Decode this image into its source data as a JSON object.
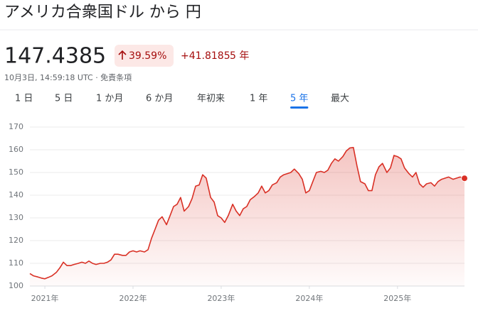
{
  "header": {
    "title": "アメリカ合衆国ドル から 円",
    "price": "147.4385",
    "change_percent": "39.59%",
    "change_absolute": "+41.8185",
    "period": "5 年",
    "timestamp": "10月3日, 14:59:18 UTC · 免責条項"
  },
  "tabs": {
    "items": [
      "1 日",
      "5 日",
      "1 か月",
      "6 か月",
      "年初来",
      "1 年",
      "5 年",
      "最大"
    ],
    "active": 6
  },
  "chart_data": {
    "type": "line",
    "color": "#d93025",
    "grid": true,
    "xlim": [
      2020.83,
      2025.76
    ],
    "xticks": [
      {
        "value": 2021,
        "label": "2021年"
      },
      {
        "value": 2022,
        "label": "2022年"
      },
      {
        "value": 2023,
        "label": "2023年"
      },
      {
        "value": 2024,
        "label": "2024年"
      },
      {
        "value": 2025,
        "label": "2025年"
      }
    ],
    "ylim": [
      100,
      170
    ],
    "yticks": [
      100,
      110,
      120,
      130,
      140,
      150,
      160,
      170
    ],
    "x": [
      2020.83,
      2020.87,
      2020.92,
      2020.96,
      2021.0,
      2021.04,
      2021.08,
      2021.13,
      2021.17,
      2021.21,
      2021.25,
      2021.29,
      2021.33,
      2021.38,
      2021.42,
      2021.46,
      2021.5,
      2021.54,
      2021.58,
      2021.63,
      2021.67,
      2021.71,
      2021.75,
      2021.79,
      2021.83,
      2021.88,
      2021.92,
      2021.96,
      2022.0,
      2022.04,
      2022.08,
      2022.13,
      2022.17,
      2022.21,
      2022.25,
      2022.29,
      2022.33,
      2022.38,
      2022.42,
      2022.46,
      2022.5,
      2022.54,
      2022.58,
      2022.63,
      2022.67,
      2022.71,
      2022.75,
      2022.79,
      2022.83,
      2022.88,
      2022.92,
      2022.96,
      2023.0,
      2023.04,
      2023.08,
      2023.13,
      2023.17,
      2023.21,
      2023.25,
      2023.29,
      2023.33,
      2023.38,
      2023.42,
      2023.46,
      2023.5,
      2023.54,
      2023.58,
      2023.63,
      2023.67,
      2023.71,
      2023.75,
      2023.79,
      2023.83,
      2023.88,
      2023.92,
      2023.96,
      2024.0,
      2024.04,
      2024.08,
      2024.13,
      2024.17,
      2024.21,
      2024.25,
      2024.29,
      2024.33,
      2024.38,
      2024.42,
      2024.46,
      2024.5,
      2024.54,
      2024.58,
      2024.63,
      2024.67,
      2024.71,
      2024.75,
      2024.79,
      2024.83,
      2024.88,
      2024.92,
      2024.96,
      2025.0,
      2025.04,
      2025.08,
      2025.13,
      2025.17,
      2025.21,
      2025.25,
      2025.29,
      2025.33,
      2025.38,
      2025.42,
      2025.46,
      2025.5,
      2025.54,
      2025.58,
      2025.63,
      2025.67,
      2025.71,
      2025.76
    ],
    "values": [
      105.5,
      104.5,
      104,
      103.5,
      103.2,
      103.8,
      104.5,
      106,
      108,
      110.5,
      109,
      109,
      109.5,
      110,
      110.5,
      110,
      111,
      110,
      109.5,
      110,
      110,
      110.5,
      111.5,
      114,
      114,
      113.5,
      113.5,
      115,
      115.5,
      115,
      115.5,
      115,
      116,
      121,
      125,
      129,
      130.5,
      127,
      131,
      135,
      136,
      139,
      133,
      135,
      138.5,
      144,
      144.5,
      149,
      147.5,
      139,
      137,
      131,
      130,
      128,
      131,
      136,
      133,
      131,
      134,
      135,
      138,
      139.5,
      141,
      144,
      141,
      142,
      144.5,
      145.5,
      148,
      149,
      149.5,
      150,
      151.5,
      149.5,
      147,
      141,
      142,
      146,
      150,
      150.5,
      150,
      151,
      154,
      156,
      155,
      157,
      159.5,
      160.8,
      161,
      153,
      146,
      145,
      142,
      142,
      149,
      152.5,
      154,
      150,
      152,
      157.5,
      157,
      156,
      152,
      149.5,
      148,
      150,
      145,
      143.5,
      145,
      145.5,
      144,
      146,
      147,
      147.5,
      148,
      147,
      147.5,
      148,
      147.4385
    ]
  }
}
